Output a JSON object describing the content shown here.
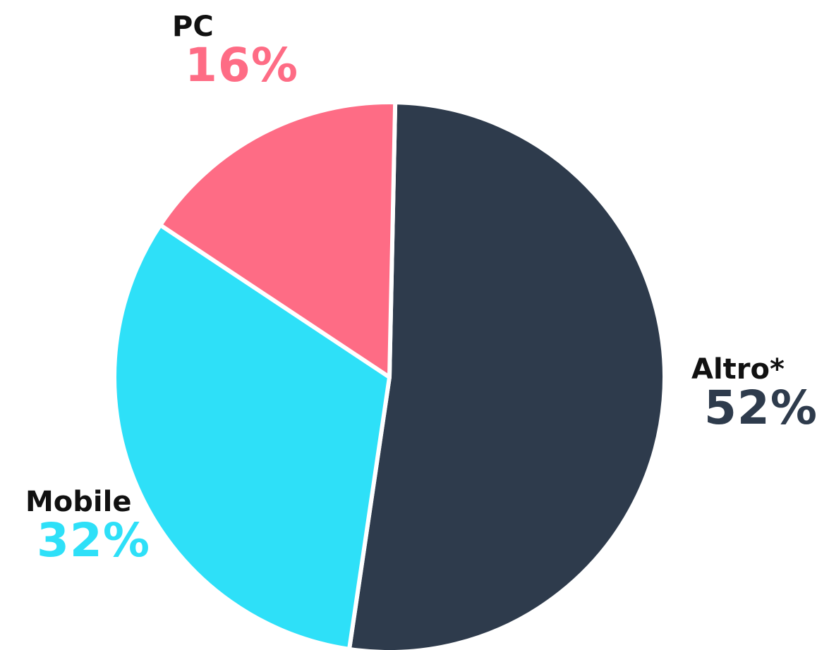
{
  "chart_data": {
    "type": "pie",
    "slices": [
      {
        "label": "Altro*",
        "value": 52,
        "value_text": "52%",
        "color": "#2e3b4c"
      },
      {
        "label": "Mobile",
        "value": 32,
        "value_text": "32%",
        "color": "#2ee0f8"
      },
      {
        "label": "PC",
        "value": 16,
        "value_text": "16%",
        "color": "#fe6c85"
      }
    ],
    "start": "12 o'clock, clockwise",
    "unit": "%"
  }
}
